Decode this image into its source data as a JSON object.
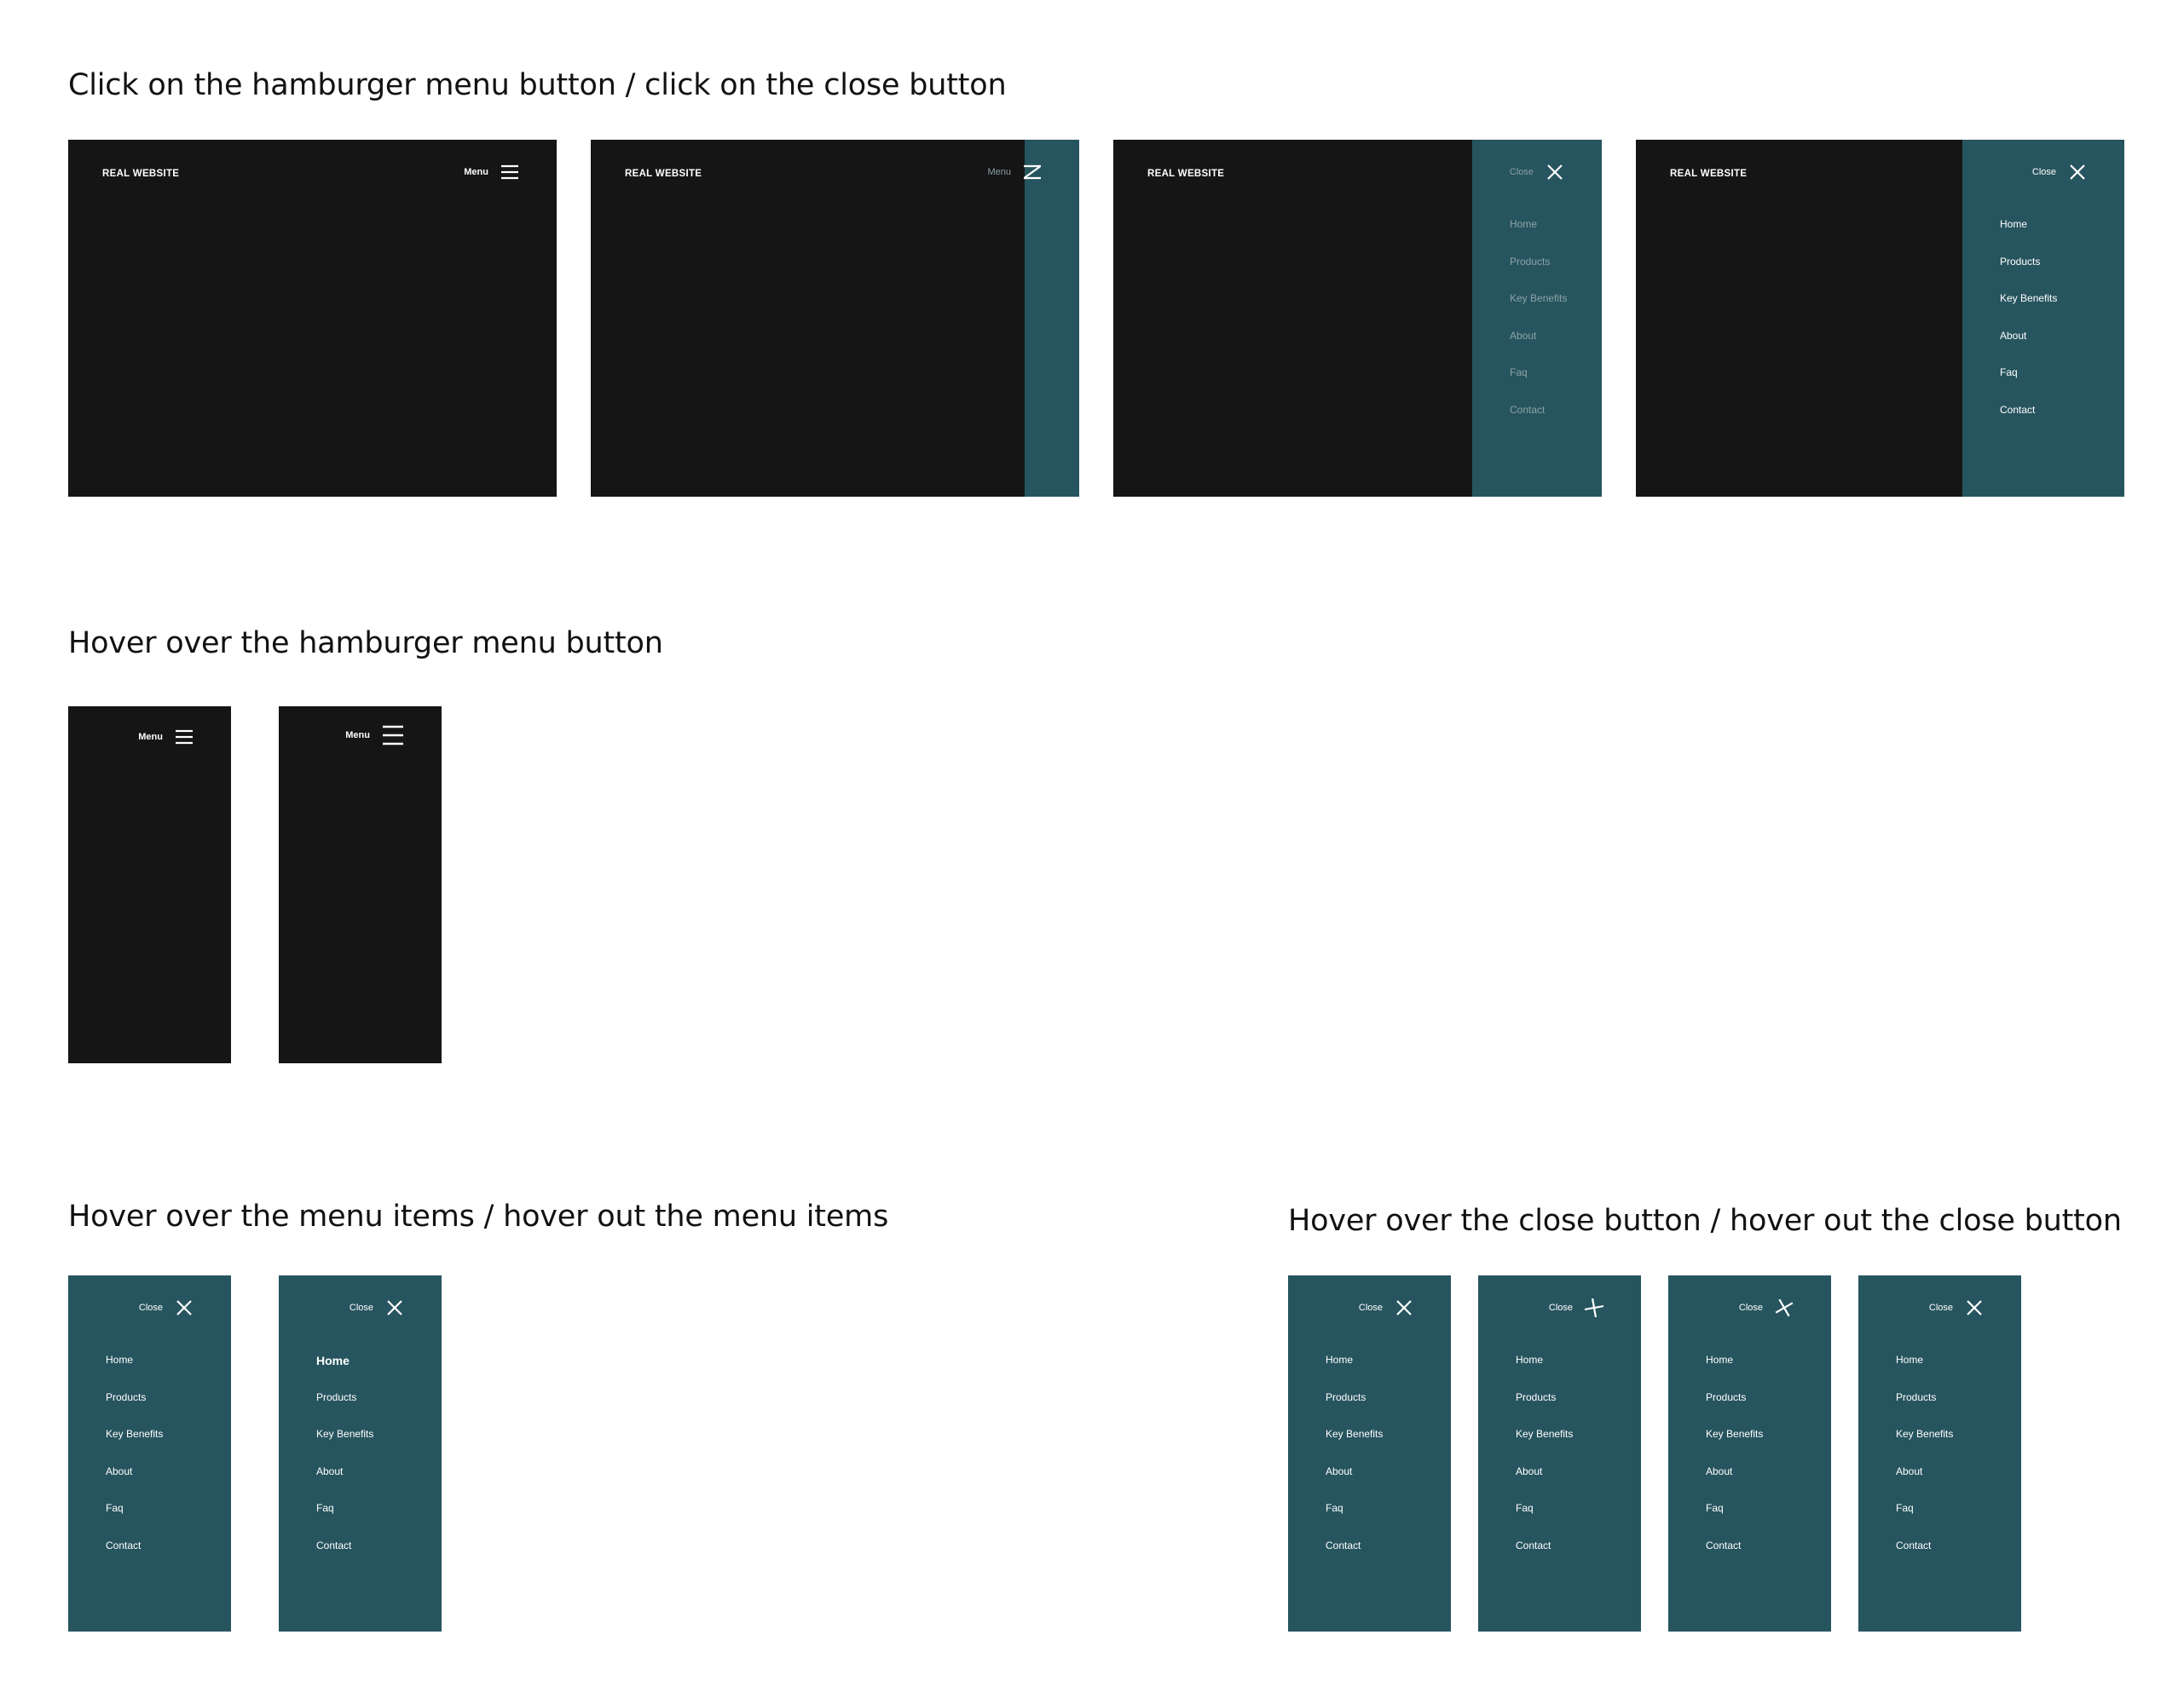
{
  "headings": {
    "click": "Click on the hamburger menu button / click on the close button",
    "hover_hamburger": "Hover over the hamburger menu button",
    "hover_items": "Hover over the menu items / hover out the menu items",
    "hover_close": "Hover over the close button / hover out the close button"
  },
  "site": {
    "brand": "REAL WEBSITE"
  },
  "labels": {
    "menu": "Menu",
    "close": "Close"
  },
  "menu_items": [
    "Home",
    "Products",
    "Key Benefits",
    "About",
    "Faq",
    "Contact"
  ],
  "colors": {
    "dark": "#151515",
    "teal": "#27555f",
    "text": "#ffffff",
    "dim_text": "#8c9da3"
  },
  "icons": {
    "hamburger": "hamburger-icon",
    "close": "close-icon",
    "morph": "hamburger-to-close-morph-icon"
  }
}
